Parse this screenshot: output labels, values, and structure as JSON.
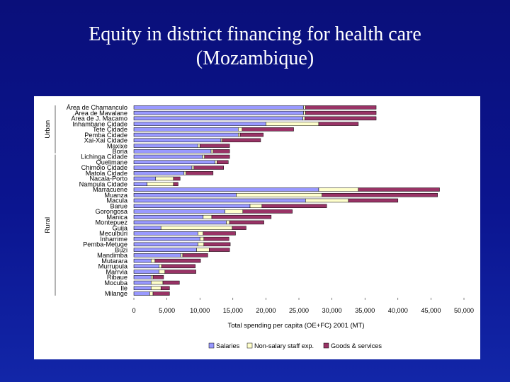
{
  "slide": {
    "title_line1": "Equity in district financing for health care",
    "title_line2": "(Mozambique)"
  },
  "chart_data": {
    "type": "bar",
    "orientation": "horizontal",
    "stacked": true,
    "title": "",
    "xlabel": "Total spending per capita (OE+FC) 2001 (MT)",
    "ylabel": "",
    "xlim": [
      0,
      50000
    ],
    "xticks": [
      0,
      5000,
      10000,
      15000,
      20000,
      25000,
      30000,
      35000,
      40000,
      45000,
      50000
    ],
    "xtick_labels": [
      "0",
      "5,000",
      "10,000",
      "15,000",
      "20,000",
      "25,000",
      "30,000",
      "35,000",
      "40,000",
      "45,000",
      "50,000"
    ],
    "grid": false,
    "legend_position": "bottom",
    "groups": [
      {
        "label": "Urban",
        "from": 0,
        "to": 8
      },
      {
        "label": "Rural",
        "from": 9,
        "to": 34
      }
    ],
    "categories": [
      "Área de Chamanculo",
      "Área de Mavalane",
      "Área de J. Macamo",
      "Inhambane Cidade",
      "Tete Cidade",
      "Pemba Cidade",
      "Xai-Xai Cidade",
      "Maxixe",
      "Boria",
      "Lichinga Cidade",
      "Quelimane",
      "Chimoio Cidade",
      "Matola Cidade",
      "Nacala-Porto",
      "Nampula Cidade",
      "Marracuene",
      "Muanza",
      "Macula",
      "Barue",
      "Gorongosa",
      "Manica",
      "Montepuez",
      "Guija",
      "Meculburi",
      "Inharrime",
      "Pemba-Metuge",
      "Buzi",
      "Mandimba",
      "Mutarara",
      "Murrupula",
      "Marrvia",
      "Ribaue",
      "Mocuba",
      "Ile",
      "Milange"
    ],
    "series": [
      {
        "name": "Salaries",
        "color": "#9999ff",
        "values": [
          25700,
          25700,
          25600,
          20000,
          15800,
          15800,
          13200,
          9700,
          11700,
          10400,
          12300,
          8800,
          7600,
          3300,
          2000,
          28000,
          15500,
          26000,
          17600,
          13800,
          10500,
          14000,
          4100,
          9700,
          10000,
          9700,
          9500,
          7100,
          2600,
          3800,
          3800,
          2600,
          2600,
          2600,
          2400
        ]
      },
      {
        "name": "Non-salary staff exp.",
        "color": "#ffffcc",
        "values": [
          300,
          300,
          300,
          8000,
          600,
          300,
          200,
          300,
          300,
          300,
          300,
          300,
          300,
          2700,
          4000,
          6000,
          13000,
          6500,
          1800,
          2700,
          1300,
          500,
          10800,
          800,
          600,
          900,
          1900,
          300,
          600,
          400,
          900,
          300,
          1800,
          1500,
          500
        ]
      },
      {
        "name": "Goods & services",
        "color": "#993366",
        "values": [
          10700,
          10700,
          10800,
          6000,
          7800,
          3500,
          5800,
          4500,
          2500,
          3800,
          1700,
          4500,
          4100,
          1000,
          700,
          12300,
          17500,
          7500,
          9800,
          7500,
          9000,
          5200,
          2100,
          4900,
          3800,
          4000,
          3100,
          3800,
          6900,
          5100,
          4700,
          1600,
          2500,
          1300,
          2500
        ]
      }
    ]
  }
}
